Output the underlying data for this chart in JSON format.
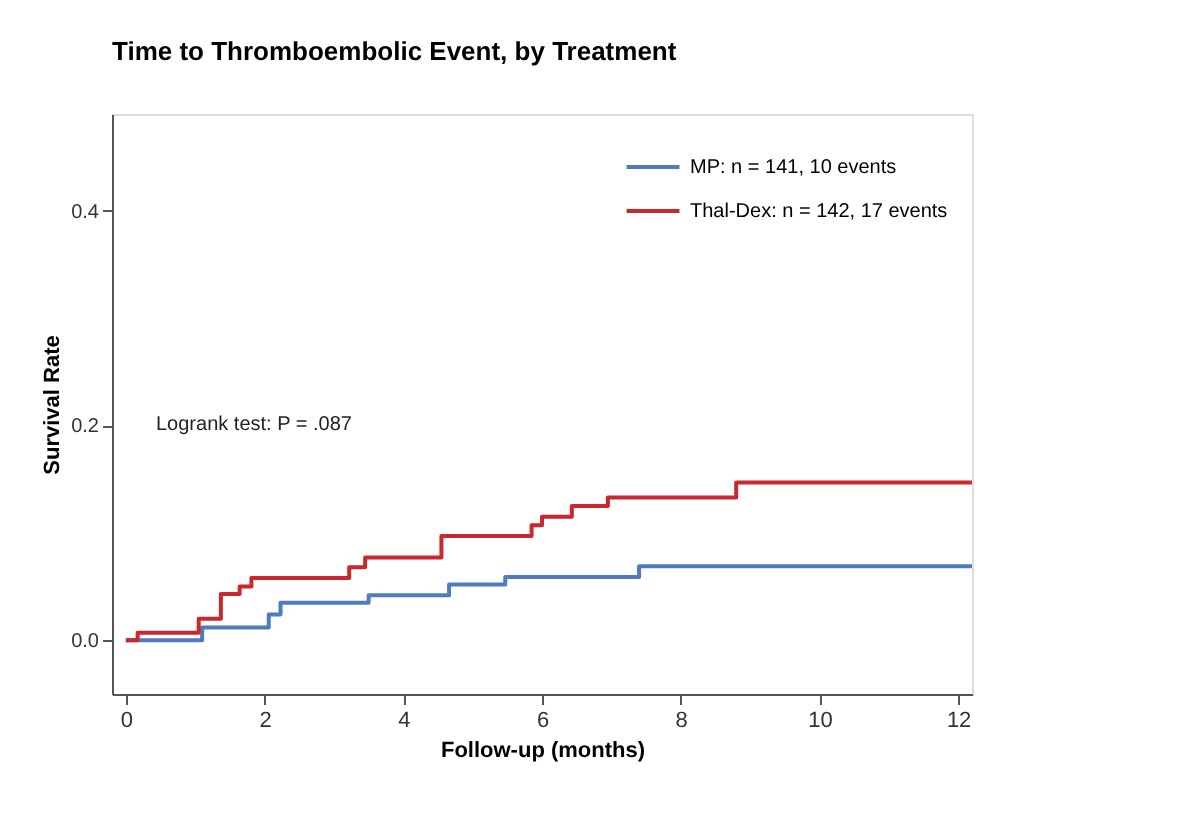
{
  "chart_data": {
    "type": "step",
    "title": "Time to Thromboembolic Event, by Treatment",
    "xlabel": "Follow-up (months)",
    "ylabel": "Survival Rate",
    "xlim": [
      -0.2,
      12.2
    ],
    "xticks": [
      0,
      2,
      4,
      6,
      8,
      10,
      12
    ],
    "ylim": [
      -0.05,
      0.49
    ],
    "yticks": [
      {
        "value": 0,
        "label": "0.0"
      },
      {
        "value": 0.2,
        "label": "0.2"
      },
      {
        "value": 0.4,
        "label": "0.4"
      }
    ],
    "grid": false,
    "legend": "top right",
    "marker": "none",
    "line_style": "solid",
    "annotations": [
      "Logrank test: P = .087"
    ],
    "series": [
      {
        "name": "MP: n = 141, 10 events",
        "color": "#4f7bbf",
        "x": [
          0,
          1.1,
          2.06,
          2.23,
          3.5,
          4.66,
          5.47,
          7.4,
          12.2
        ],
        "values": [
          0,
          0.012,
          0.024,
          0.035,
          0.042,
          0.052,
          0.059,
          0.069,
          0.069
        ]
      },
      {
        "name": "Thal-Dex: n = 142, 17 events",
        "color": "#c8282e",
        "x": [
          0,
          0.17,
          1.05,
          1.37,
          1.64,
          1.81,
          3.22,
          3.45,
          4.55,
          5.85,
          6.0,
          6.43,
          6.95,
          8.8,
          12.2
        ],
        "values": [
          0,
          0.007,
          0.02,
          0.043,
          0.05,
          0.058,
          0.068,
          0.077,
          0.097,
          0.107,
          0.115,
          0.125,
          0.133,
          0.147,
          0.147
        ]
      }
    ]
  }
}
